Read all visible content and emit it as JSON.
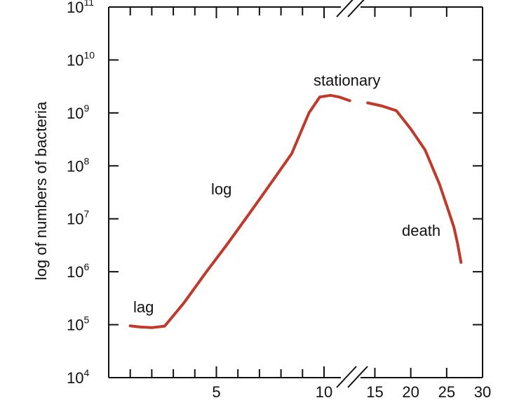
{
  "chart_data": {
    "type": "line",
    "title": "",
    "xlabel": "",
    "ylabel": "log of numbers of bacteria",
    "y_scale": "log",
    "ylim": [
      10000,
      100000000000
    ],
    "y_ticks": [
      {
        "base": "10",
        "exp": "4"
      },
      {
        "base": "10",
        "exp": "5"
      },
      {
        "base": "10",
        "exp": "6"
      },
      {
        "base": "10",
        "exp": "7"
      },
      {
        "base": "10",
        "exp": "8"
      },
      {
        "base": "10",
        "exp": "9"
      },
      {
        "base": "10",
        "exp": "10"
      },
      {
        "base": "10",
        "exp": "11"
      }
    ],
    "x_axis_break": true,
    "x_ticks": [
      "5",
      "10",
      "15",
      "20",
      "25",
      "30"
    ],
    "grid": false,
    "phase_labels": [
      "lag",
      "log",
      "stationary",
      "death"
    ],
    "series": [
      {
        "color": "#c0392b",
        "x": [
          1.0,
          1.5,
          2.0,
          2.6,
          3.5,
          4.5,
          5.5,
          6.5,
          7.5,
          8.5,
          9.3,
          9.8,
          10.3,
          10.7,
          11.2,
          14,
          16,
          18,
          20,
          22,
          24,
          25,
          26,
          26.5,
          27
        ],
        "y": [
          95000,
          90000,
          88000,
          94000,
          260000,
          950000,
          3300000,
          12000000,
          45000000,
          170000000,
          1000000000,
          2000000000,
          2150000000,
          2000000000,
          1700000000,
          1550000000,
          1350000000,
          1100000000,
          500000000,
          200000000,
          45000000,
          18000000,
          7000000,
          3500000,
          1500000
        ]
      }
    ]
  }
}
